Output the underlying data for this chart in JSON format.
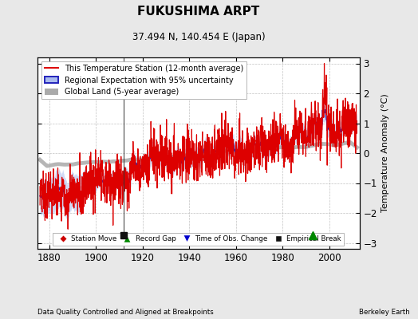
{
  "title": "FUKUSHIMA ARPT",
  "subtitle": "37.494 N, 140.454 E (Japan)",
  "ylabel": "Temperature Anomaly (°C)",
  "xlabel_left": "Data Quality Controlled and Aligned at Breakpoints",
  "xlabel_right": "Berkeley Earth",
  "ylim": [
    -3.2,
    3.2
  ],
  "xlim": [
    1875,
    2013
  ],
  "yticks": [
    -3,
    -2,
    -1,
    0,
    1,
    2,
    3
  ],
  "xticks": [
    1880,
    1900,
    1920,
    1940,
    1960,
    1980,
    2000
  ],
  "background_color": "#e8e8e8",
  "plot_bg_color": "#ffffff",
  "legend_line_items": [
    {
      "label": "This Temperature Station (12-month average)",
      "color": "#dd0000",
      "lw": 1.2
    },
    {
      "label": "Regional Expectation with 95% uncertainty",
      "color": "#2222bb",
      "lw": 1.5,
      "band_color": "#aabbee"
    },
    {
      "label": "Global Land (5-year average)",
      "color": "#aaaaaa",
      "lw": 4
    }
  ],
  "marker_legend": [
    {
      "label": "Station Move",
      "marker": "D",
      "color": "#cc0000"
    },
    {
      "label": "Record Gap",
      "marker": "^",
      "color": "#008800"
    },
    {
      "label": "Time of Obs. Change",
      "marker": "v",
      "color": "#0000cc"
    },
    {
      "label": "Empirical Break",
      "marker": "s",
      "color": "#111111"
    }
  ],
  "empirical_break_x": 1912,
  "record_gap_x": 1993,
  "marker_y": -2.75,
  "vertical_line_x": 1912
}
